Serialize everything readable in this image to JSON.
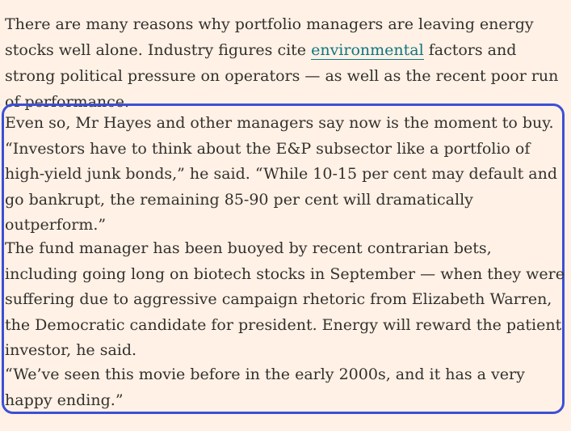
{
  "article": {
    "intro": {
      "before": "There are many reasons why portfolio managers are leaving energy stocks well alone. Industry figures cite ",
      "link": "environmental",
      "after": " factors and strong political pressure on operators — as well as the recent poor run of performance."
    },
    "highlighted": {
      "p1": "Even so, Mr Hayes and other managers say now is the moment to buy. “Investors have to think about the E&P subsector like a portfolio of high-yield junk bonds,” he said. “While 10-15 per cent may default and go bankrupt, the remaining 85-90 per cent will dramatically outperform.”",
      "p2": "The fund manager has been buoyed by recent contrarian bets, including going long on biotech stocks in September — when they were suffering due to aggressive campaign rhetoric from Elizabeth Warren, the Democratic candidate for president. Energy will reward the patient investor, he said.",
      "p3": "“We’ve seen this movie before in the early 2000s, and it has a very happy ending.”"
    }
  },
  "colors": {
    "background": "#fff1e5",
    "text": "#33302e",
    "link": "#0d7680",
    "highlight_border": "#3d4fd6"
  }
}
